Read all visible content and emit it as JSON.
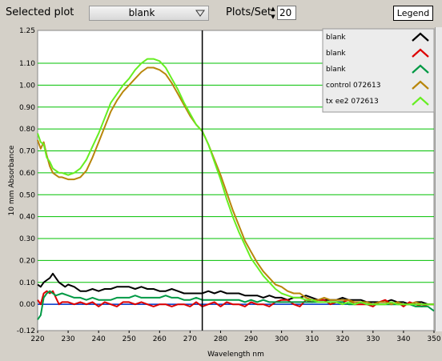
{
  "toolbar": {
    "selected_plot_label": "Selected plot",
    "selected_plot_value": "blank",
    "plots_per_set_label": "Plots/Set",
    "plots_per_set_value": "20",
    "legend_button_label": "Legend"
  },
  "colors": {
    "grid": "#00c000",
    "background": "#ffffff",
    "cursor": "#000000",
    "legend_bg": "#ececec",
    "toolbar_bg": "#d4d0c8"
  },
  "chart_data": {
    "type": "line",
    "xlabel": "Wavelength nm",
    "ylabel": "10 mm Absorbance",
    "xlim": [
      220,
      350
    ],
    "ylim": [
      -0.12,
      1.25
    ],
    "xticks": [
      220,
      230,
      240,
      250,
      260,
      270,
      280,
      290,
      300,
      310,
      320,
      330,
      340,
      350
    ],
    "yticks": [
      -0.12,
      0.0,
      0.1,
      0.2,
      0.3,
      0.4,
      0.5,
      0.6,
      0.7,
      0.8,
      0.9,
      1.0,
      1.1,
      1.25
    ],
    "ytick_labels": [
      "-0.12",
      "0.00",
      "0.10",
      "0.20",
      "0.30",
      "0.40",
      "0.50",
      "0.60",
      "0.70",
      "0.80",
      "0.90",
      "1.00",
      "1.10",
      "1.25"
    ],
    "grid": "horizontal",
    "cursor_x": 274,
    "legend_position": "top-right",
    "series": [
      {
        "name": "blank",
        "color": "#000000",
        "x": [
          220,
          221,
          222,
          223,
          224,
          225,
          226,
          227,
          228,
          229,
          230,
          232,
          234,
          236,
          238,
          240,
          242,
          244,
          246,
          248,
          250,
          252,
          254,
          256,
          258,
          260,
          262,
          264,
          266,
          268,
          270,
          272,
          274,
          276,
          278,
          280,
          282,
          284,
          286,
          288,
          290,
          292,
          294,
          296,
          298,
          300,
          302,
          304,
          306,
          308,
          310,
          312,
          314,
          316,
          318,
          320,
          322,
          324,
          326,
          328,
          330,
          332,
          334,
          336,
          338,
          340,
          342,
          344,
          346,
          348,
          350
        ],
        "y": [
          0.09,
          0.08,
          0.1,
          0.11,
          0.12,
          0.14,
          0.12,
          0.1,
          0.09,
          0.08,
          0.09,
          0.08,
          0.06,
          0.06,
          0.07,
          0.06,
          0.07,
          0.07,
          0.08,
          0.08,
          0.08,
          0.07,
          0.08,
          0.07,
          0.07,
          0.06,
          0.06,
          0.07,
          0.06,
          0.05,
          0.05,
          0.05,
          0.05,
          0.06,
          0.05,
          0.06,
          0.05,
          0.05,
          0.05,
          0.04,
          0.04,
          0.04,
          0.03,
          0.04,
          0.03,
          0.03,
          0.02,
          0.03,
          0.03,
          0.04,
          0.03,
          0.02,
          0.02,
          0.02,
          0.02,
          0.03,
          0.02,
          0.02,
          0.02,
          0.01,
          0.01,
          0.01,
          0.01,
          0.02,
          0.01,
          0.01,
          0.0,
          0.01,
          0.01,
          0.0,
          0.0
        ]
      },
      {
        "name": "blank",
        "color": "#dd0000",
        "x": [
          220,
          221,
          222,
          223,
          224,
          225,
          226,
          227,
          228,
          230,
          232,
          234,
          236,
          238,
          240,
          242,
          244,
          246,
          248,
          250,
          252,
          254,
          256,
          258,
          260,
          262,
          264,
          266,
          268,
          270,
          272,
          274,
          276,
          278,
          280,
          282,
          284,
          286,
          288,
          290,
          292,
          294,
          296,
          298,
          300,
          302,
          304,
          306,
          308,
          310,
          312,
          314,
          316,
          318,
          320,
          322,
          324,
          326,
          328,
          330,
          332,
          334,
          336,
          338,
          340,
          342,
          344,
          346,
          348,
          350
        ],
        "y": [
          0.02,
          0.0,
          0.05,
          0.06,
          0.05,
          0.06,
          0.03,
          0.0,
          0.01,
          0.01,
          0.0,
          0.01,
          0.0,
          0.01,
          -0.01,
          0.01,
          0.0,
          -0.01,
          0.01,
          0.01,
          0.0,
          0.01,
          0.0,
          -0.01,
          0.0,
          0.0,
          -0.01,
          0.0,
          0.0,
          -0.01,
          0.01,
          -0.01,
          0.0,
          0.01,
          -0.01,
          0.01,
          0.0,
          0.0,
          -0.01,
          0.01,
          0.0,
          0.0,
          -0.01,
          0.01,
          0.02,
          0.02,
          0.0,
          -0.01,
          0.02,
          0.01,
          0.02,
          0.02,
          0.0,
          0.01,
          0.01,
          0.02,
          0.0,
          0.0,
          0.0,
          -0.01,
          0.01,
          0.02,
          0.0,
          0.01,
          -0.01,
          0.01,
          0.0,
          -0.01,
          0.0,
          0.0
        ]
      },
      {
        "name": "blank",
        "color": "#009944",
        "x": [
          220,
          221,
          222,
          223,
          224,
          225,
          226,
          228,
          230,
          232,
          234,
          236,
          238,
          240,
          242,
          244,
          246,
          248,
          250,
          252,
          254,
          256,
          258,
          260,
          262,
          264,
          266,
          268,
          270,
          272,
          274,
          276,
          278,
          280,
          282,
          284,
          286,
          288,
          290,
          292,
          294,
          296,
          298,
          300,
          302,
          304,
          306,
          308,
          310,
          312,
          314,
          316,
          318,
          320,
          322,
          324,
          326,
          328,
          330,
          332,
          334,
          336,
          338,
          340,
          342,
          344,
          346,
          348,
          350
        ],
        "y": [
          -0.07,
          -0.05,
          0.03,
          0.05,
          0.06,
          0.05,
          0.04,
          0.05,
          0.04,
          0.03,
          0.03,
          0.02,
          0.03,
          0.02,
          0.02,
          0.02,
          0.03,
          0.03,
          0.03,
          0.04,
          0.03,
          0.03,
          0.03,
          0.03,
          0.04,
          0.03,
          0.03,
          0.02,
          0.02,
          0.03,
          0.02,
          0.02,
          0.02,
          0.02,
          0.02,
          0.02,
          0.02,
          0.01,
          0.02,
          0.01,
          0.02,
          0.01,
          0.01,
          0.01,
          0.01,
          0.01,
          0.01,
          0.01,
          0.01,
          0.01,
          0.01,
          0.01,
          0.01,
          0.01,
          0.0,
          0.0,
          0.01,
          0.0,
          0.0,
          0.0,
          0.0,
          0.0,
          0.0,
          0.0,
          0.0,
          -0.01,
          -0.01,
          -0.01,
          -0.03
        ]
      },
      {
        "name": "control 072613",
        "color": "#b8860b",
        "x": [
          220,
          221,
          222,
          223,
          224,
          225,
          226,
          227,
          228,
          230,
          232,
          234,
          236,
          238,
          240,
          242,
          244,
          246,
          248,
          250,
          252,
          254,
          256,
          258,
          260,
          262,
          264,
          266,
          268,
          270,
          272,
          274,
          276,
          278,
          280,
          282,
          284,
          286,
          288,
          290,
          292,
          294,
          296,
          298,
          300,
          302,
          304,
          306,
          308,
          310,
          312,
          314,
          316,
          318,
          320,
          322,
          324,
          326,
          328,
          330,
          332,
          334,
          336,
          338,
          340,
          342,
          344,
          346,
          348,
          350
        ],
        "y": [
          0.75,
          0.71,
          0.74,
          0.68,
          0.63,
          0.6,
          0.59,
          0.58,
          0.58,
          0.57,
          0.57,
          0.58,
          0.61,
          0.67,
          0.74,
          0.81,
          0.88,
          0.93,
          0.97,
          1.0,
          1.03,
          1.06,
          1.08,
          1.08,
          1.07,
          1.05,
          1.01,
          0.96,
          0.91,
          0.86,
          0.82,
          0.79,
          0.73,
          0.66,
          0.59,
          0.51,
          0.43,
          0.36,
          0.29,
          0.24,
          0.19,
          0.15,
          0.12,
          0.09,
          0.08,
          0.06,
          0.05,
          0.05,
          0.03,
          0.02,
          0.02,
          0.03,
          0.02,
          0.02,
          0.02,
          0.02,
          0.01,
          0.01,
          0.01,
          0.0,
          0.01,
          0.01,
          0.0,
          0.01,
          0.0,
          0.0,
          0.01,
          0.0,
          0.0,
          0.0
        ]
      },
      {
        "name": "tx ee2 072613",
        "color": "#66ee22",
        "x": [
          220,
          221,
          222,
          223,
          224,
          225,
          226,
          227,
          228,
          230,
          232,
          234,
          236,
          238,
          240,
          242,
          244,
          246,
          248,
          250,
          252,
          254,
          256,
          258,
          260,
          262,
          264,
          266,
          268,
          270,
          272,
          274,
          276,
          278,
          280,
          282,
          284,
          286,
          288,
          290,
          292,
          294,
          296,
          298,
          300,
          302,
          304,
          306,
          308,
          310,
          312,
          314,
          316,
          318,
          320,
          322,
          324,
          326,
          328,
          330,
          332,
          334,
          336,
          338,
          340,
          342,
          344,
          346,
          348,
          350
        ],
        "y": [
          0.78,
          0.74,
          0.73,
          0.67,
          0.65,
          0.62,
          0.61,
          0.6,
          0.6,
          0.59,
          0.6,
          0.62,
          0.66,
          0.72,
          0.78,
          0.85,
          0.92,
          0.96,
          1.0,
          1.03,
          1.07,
          1.1,
          1.12,
          1.12,
          1.11,
          1.08,
          1.03,
          0.98,
          0.92,
          0.87,
          0.82,
          0.79,
          0.73,
          0.65,
          0.57,
          0.48,
          0.4,
          0.33,
          0.27,
          0.21,
          0.17,
          0.13,
          0.1,
          0.07,
          0.05,
          0.04,
          0.03,
          0.03,
          0.02,
          0.02,
          0.01,
          0.01,
          0.01,
          0.01,
          0.0,
          0.01,
          0.0,
          0.01,
          0.0,
          0.0,
          0.0,
          0.0,
          0.01,
          0.0,
          0.0,
          0.0,
          0.0,
          0.0,
          0.0,
          0.0
        ]
      }
    ],
    "baseline_color": "#0033cc"
  }
}
